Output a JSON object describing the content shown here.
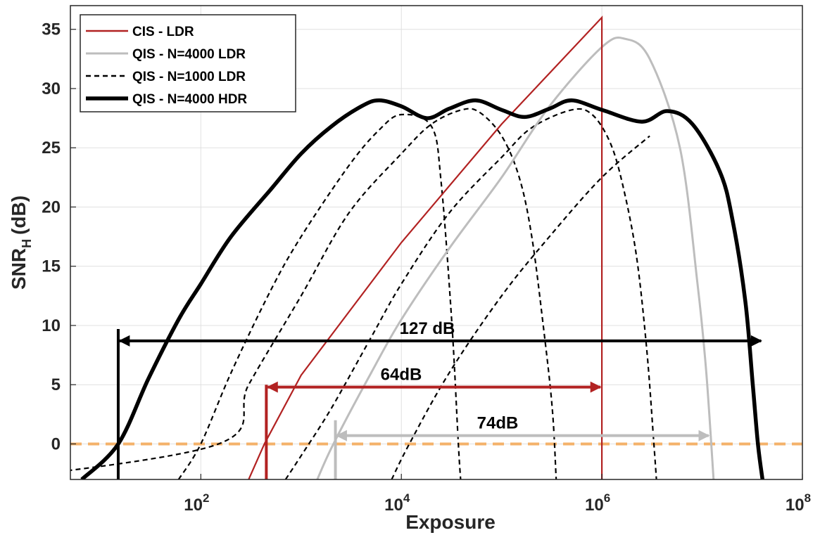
{
  "chart_data": {
    "type": "line",
    "xlabel": "Exposure",
    "ylabel": "SNR",
    "ylabel_sub": "H",
    "ylabel_unit": "(dB)",
    "xscale": "log",
    "xlim": [
      5,
      100000000
    ],
    "ylim": [
      -3,
      37
    ],
    "xticks": [
      {
        "value": 100,
        "base": "10",
        "exp": "2"
      },
      {
        "value": 10000,
        "base": "10",
        "exp": "4"
      },
      {
        "value": 1000000,
        "base": "10",
        "exp": "6"
      },
      {
        "value": 100000000,
        "base": "10",
        "exp": "8"
      }
    ],
    "yticks": [
      0,
      5,
      10,
      15,
      20,
      25,
      30,
      35
    ],
    "grid": true,
    "legend_position": "top-left",
    "colors": {
      "cis": "#b22222",
      "qis_ldr": "#bdbdbd",
      "qis_1000": "#000000",
      "qis_hdr": "#000000",
      "zero_line": "#f4b26a",
      "ann_black": "#000000",
      "ann_red": "#b22222",
      "ann_gray": "#bdbdbd"
    },
    "series": [
      {
        "name": "CIS - LDR",
        "style": "solid-thin-red",
        "points": [
          [
            300,
            -3
          ],
          [
            430,
            0
          ],
          [
            1000,
            5.8
          ],
          [
            10000,
            17
          ],
          [
            100000,
            27
          ],
          [
            1000000,
            36
          ],
          [
            1000000,
            -3
          ]
        ]
      },
      {
        "name": "QIS - N=4000 LDR",
        "style": "solid-gray",
        "points": [
          [
            1450,
            -3
          ],
          [
            2100,
            0
          ],
          [
            5000,
            6
          ],
          [
            10000,
            10.5
          ],
          [
            30000,
            16.5
          ],
          [
            100000,
            22.5
          ],
          [
            300000,
            28.5
          ],
          [
            1000000,
            33.5
          ],
          [
            1700000,
            34.2
          ],
          [
            3000000,
            32.5
          ],
          [
            6000000,
            25
          ],
          [
            9000000,
            13.5
          ],
          [
            11000000,
            6
          ],
          [
            13000000,
            -3
          ]
        ]
      },
      {
        "name": "QIS - N=1000 LDR",
        "style": "dashed",
        "curves": [
          [
            [
              1,
              -3
            ],
            [
              150,
              0
            ],
            [
              300,
              5
            ],
            [
              1000,
              12.5
            ],
            [
              3000,
              19.5
            ],
            [
              10000,
              24.5
            ],
            [
              20000,
              27
            ],
            [
              40000,
              28.2
            ],
            [
              60000,
              28
            ],
            [
              100000,
              26
            ],
            [
              150000,
              22.5
            ],
            [
              200000,
              17.5
            ],
            [
              260000,
              10
            ],
            [
              320000,
              3
            ],
            [
              350000,
              -3
            ]
          ],
          [
            [
              700,
              -3
            ],
            [
              1000,
              -1
            ],
            [
              2000,
              3
            ],
            [
              5000,
              9
            ],
            [
              10000,
              13.5
            ],
            [
              30000,
              19.5
            ],
            [
              100000,
              24.2
            ],
            [
              200000,
              26.7
            ],
            [
              500000,
              28.2
            ],
            [
              800000,
              27.8
            ],
            [
              1200000,
              25.5
            ],
            [
              1600000,
              22
            ],
            [
              2200000,
              16
            ],
            [
              2800000,
              8
            ],
            [
              3300000,
              0
            ],
            [
              3500000,
              -3
            ]
          ],
          [
            [
              60,
              -3
            ],
            [
              100,
              0
            ],
            [
              200,
              6
            ],
            [
              500,
              13
            ],
            [
              1000,
              17.5
            ],
            [
              3000,
              23.5
            ],
            [
              6000,
              26.5
            ],
            [
              10000,
              27.8
            ],
            [
              20000,
              26.8
            ],
            [
              25000,
              22
            ],
            [
              32000,
              10
            ],
            [
              37000,
              0
            ],
            [
              39000,
              -3
            ]
          ],
          [
            [
              8000,
              -3
            ],
            [
              12000,
              0
            ],
            [
              30000,
              6
            ],
            [
              100000,
              12.5
            ],
            [
              300000,
              17.5
            ],
            [
              1000000,
              22.5
            ],
            [
              3000000,
              26
            ]
          ]
        ]
      },
      {
        "name": "QIS - N=4000 HDR",
        "style": "solid-thick-black",
        "points": [
          [
            6.5,
            -3
          ],
          [
            15,
            0
          ],
          [
            30,
            5.5
          ],
          [
            60,
            10.5
          ],
          [
            100,
            13.5
          ],
          [
            200,
            17.5
          ],
          [
            500,
            21.5
          ],
          [
            1000,
            24.5
          ],
          [
            2000,
            26.8
          ],
          [
            4000,
            28.5
          ],
          [
            6000,
            29
          ],
          [
            10000,
            28.5
          ],
          [
            18000,
            27.5
          ],
          [
            30000,
            28.3
          ],
          [
            55000,
            29
          ],
          [
            100000,
            28.2
          ],
          [
            170000,
            27.6
          ],
          [
            300000,
            28.3
          ],
          [
            500000,
            29
          ],
          [
            1000000,
            28.2
          ],
          [
            2500000,
            27.2
          ],
          [
            4500000,
            28.1
          ],
          [
            8000000,
            27
          ],
          [
            15000000,
            23
          ],
          [
            20000000,
            19
          ],
          [
            27000000,
            12
          ],
          [
            32000000,
            5
          ],
          [
            36000000,
            0
          ],
          [
            40000000,
            -3
          ]
        ]
      }
    ],
    "annotations": [
      {
        "label": "127 dB",
        "x1": 15,
        "x2": 40000000,
        "y": 8.7,
        "color": "ann_black",
        "vline_x": 15,
        "vline_top": 9.7
      },
      {
        "label": "64dB",
        "x1": 450,
        "x2": 1000000,
        "y": 4.8,
        "color": "ann_red",
        "vline_x": 450,
        "vline_top": 5
      },
      {
        "label": "74dB",
        "x1": 2200,
        "x2": 12000000,
        "y": 0.7,
        "color": "ann_gray",
        "vline_x": 2200,
        "vline_top": 2
      }
    ],
    "reference_line": {
      "y": 0,
      "style": "dashed",
      "color": "zero_line"
    }
  }
}
